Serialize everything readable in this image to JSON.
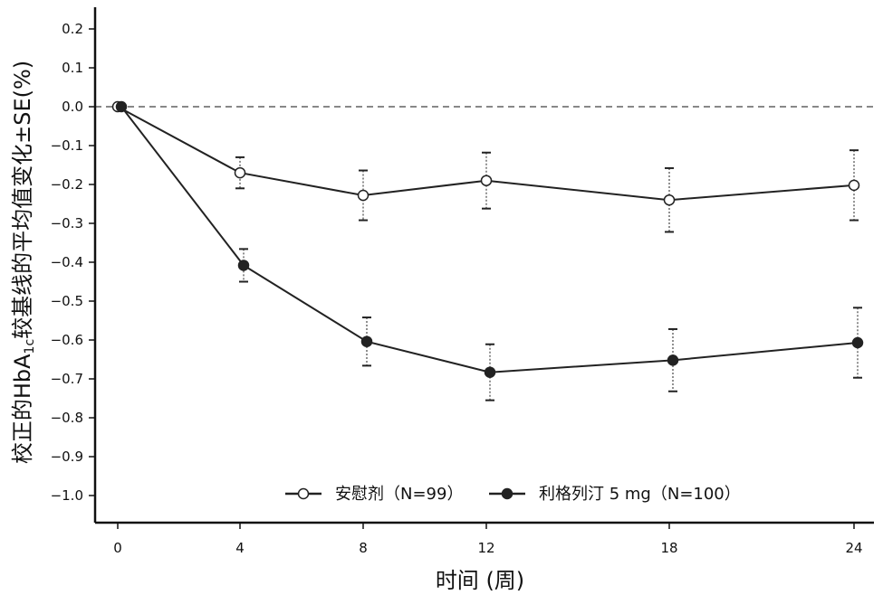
{
  "chart_data": {
    "type": "line",
    "xlabel": "时间 (周)",
    "ylabel": "校正的HbA1c较基线的平均值变化±SE(%)",
    "ylabel_parts": {
      "before": "校正的HbA",
      "sub": "1c",
      "after": "较基线的平均值变化±SE(%)"
    },
    "x_ticks": [
      "0",
      "4",
      "8",
      "12",
      "18",
      "24"
    ],
    "y_ticks": [
      "0.2",
      "0.1",
      "0.0",
      "−0.1",
      "−0.2",
      "−0.3",
      "−0.4",
      "−0.5",
      "−0.6",
      "−0.7",
      "−0.8",
      "−0.9",
      "−1.0"
    ],
    "ylim": [
      -1.05,
      0.25
    ],
    "reference_line_y": 0.0,
    "legend_position": "bottom-center",
    "series": [
      {
        "name": "安慰剂（N=99）",
        "marker": "open-circle",
        "x": [
          0,
          4,
          8,
          12,
          18,
          24
        ],
        "y": [
          0.0,
          -0.17,
          -0.228,
          -0.19,
          -0.24,
          -0.202
        ],
        "err": [
          0,
          0.04,
          0.064,
          0.072,
          0.082,
          0.09
        ]
      },
      {
        "name": "利格列汀 5 mg（N=100）",
        "marker": "filled-circle",
        "x": [
          0,
          4,
          8,
          12,
          18,
          24
        ],
        "y": [
          0.0,
          -0.408,
          -0.604,
          -0.683,
          -0.652,
          -0.607
        ],
        "err": [
          0,
          0.042,
          0.062,
          0.072,
          0.08,
          0.09
        ]
      }
    ]
  },
  "colors": {
    "line": "#222222",
    "reference": "#888888",
    "axis": "#111111"
  }
}
